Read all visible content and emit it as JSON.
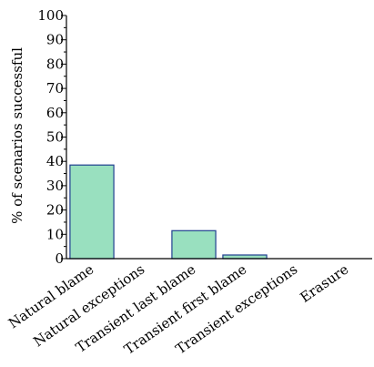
{
  "chart_data": {
    "type": "bar",
    "title": "",
    "xlabel": "",
    "ylabel": "% of scenarios successful",
    "categories": [
      "Natural blame",
      "Natural exceptions",
      "Transient last blame",
      "Transient first blame",
      "Transient exceptions",
      "Erasure"
    ],
    "values": [
      38.5,
      0,
      11.5,
      1.5,
      0,
      0
    ],
    "ylim": [
      0,
      100
    ],
    "yticks": [
      "0",
      "10",
      "20",
      "30",
      "40",
      "50",
      "60",
      "70",
      "80",
      "90",
      "100"
    ],
    "grid": false,
    "legend": "none",
    "colors": {
      "bar_fill": "#99e0bf",
      "bar_stroke": "#1f3f8f",
      "axis": "#000000"
    }
  }
}
